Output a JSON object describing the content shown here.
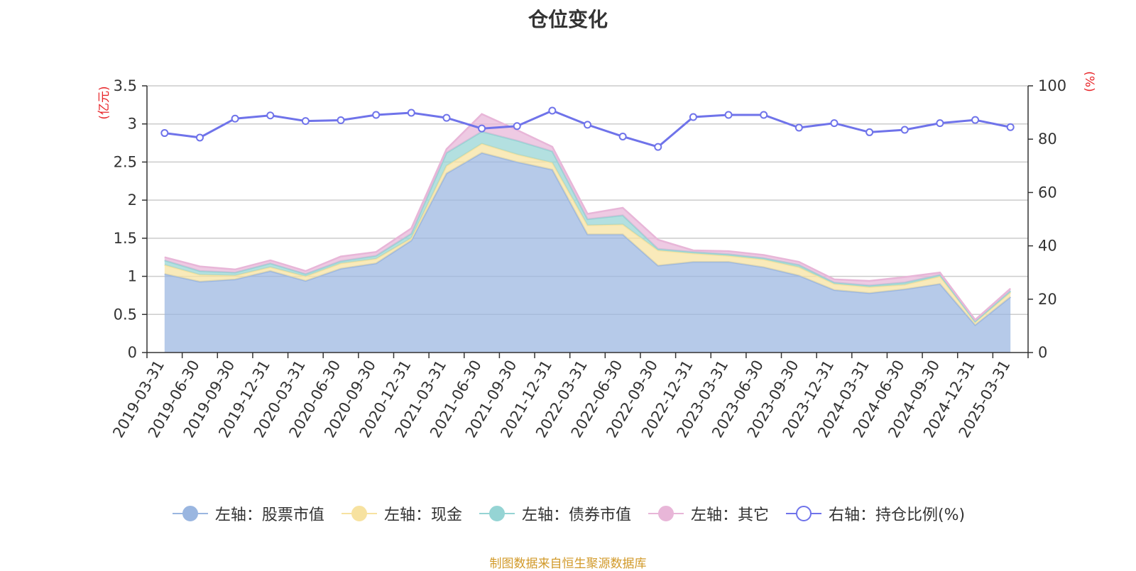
{
  "title": "仓位变化",
  "source_note": "制图数据来自恒生聚源数据库",
  "chart_data": {
    "type": "area",
    "title": "仓位变化",
    "x": [
      "2019-03-31",
      "2019-06-30",
      "2019-09-30",
      "2019-12-31",
      "2020-03-31",
      "2020-06-30",
      "2020-09-30",
      "2020-12-31",
      "2021-03-31",
      "2021-06-30",
      "2021-09-30",
      "2021-12-31",
      "2022-03-31",
      "2022-06-30",
      "2022-09-30",
      "2022-12-31",
      "2023-03-31",
      "2023-06-30",
      "2023-09-30",
      "2023-12-31",
      "2024-03-31",
      "2024-06-30",
      "2024-09-30",
      "2024-12-31",
      "2025-03-31"
    ],
    "y_left": {
      "label": "(亿元)",
      "ylim": [
        0,
        3.5
      ],
      "ticks": [
        "0",
        "0.5",
        "1",
        "1.5",
        "2",
        "2.5",
        "3",
        "3.5"
      ]
    },
    "y_right": {
      "label": "(%)",
      "ylim": [
        0,
        100
      ],
      "ticks": [
        "0",
        "20",
        "40",
        "60",
        "80",
        "100"
      ]
    },
    "grid": true,
    "legend_position": "bottom",
    "stacked_series": [
      {
        "name": "左轴：股票市值",
        "color": "#9ab6e0",
        "values": [
          1.03,
          0.93,
          0.96,
          1.07,
          0.94,
          1.1,
          1.17,
          1.47,
          2.35,
          2.62,
          2.5,
          2.4,
          1.55,
          1.55,
          1.14,
          1.19,
          1.19,
          1.12,
          1.01,
          0.82,
          0.78,
          0.83,
          0.9,
          0.36,
          0.73
        ]
      },
      {
        "name": "左轴：现金",
        "color": "#f7e2a0",
        "values": [
          0.12,
          0.09,
          0.05,
          0.05,
          0.06,
          0.07,
          0.06,
          0.03,
          0.1,
          0.12,
          0.1,
          0.09,
          0.12,
          0.13,
          0.2,
          0.11,
          0.08,
          0.1,
          0.11,
          0.08,
          0.08,
          0.06,
          0.1,
          0.04,
          0.06
        ]
      },
      {
        "name": "左轴：债券市值",
        "color": "#95d4d4",
        "values": [
          0.06,
          0.05,
          0.04,
          0.05,
          0.03,
          0.03,
          0.04,
          0.06,
          0.17,
          0.16,
          0.18,
          0.15,
          0.08,
          0.12,
          0.02,
          0.02,
          0.02,
          0.02,
          0.03,
          0.02,
          0.02,
          0.03,
          0.02,
          0.01,
          0.02
        ]
      },
      {
        "name": "左轴：其它",
        "color": "#e8b6d8",
        "values": [
          0.04,
          0.06,
          0.04,
          0.04,
          0.04,
          0.06,
          0.05,
          0.07,
          0.05,
          0.23,
          0.14,
          0.06,
          0.07,
          0.1,
          0.12,
          0.02,
          0.04,
          0.04,
          0.04,
          0.04,
          0.06,
          0.07,
          0.03,
          0.02,
          0.03
        ]
      }
    ],
    "line_series": {
      "name": "右轴：持仓比例(%)",
      "color": "#6f73ea",
      "values": [
        82.3,
        80.6,
        87.7,
        88.9,
        86.8,
        87.1,
        89.1,
        89.9,
        88.0,
        84.0,
        84.9,
        90.7,
        85.4,
        81.0,
        77.1,
        88.3,
        89.1,
        89.1,
        84.3,
        86.0,
        82.6,
        83.5,
        86.0,
        87.2,
        84.5
      ]
    }
  }
}
